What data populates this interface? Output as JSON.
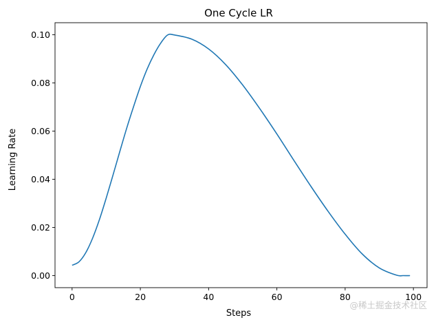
{
  "chart_data": {
    "type": "line",
    "title": "One Cycle LR",
    "xlabel": "Steps",
    "ylabel": "Learning Rate",
    "xlim": [
      -5,
      104
    ],
    "ylim": [
      -0.005,
      0.105
    ],
    "xticks": [
      0,
      20,
      40,
      60,
      80,
      100
    ],
    "yticks": [
      0.0,
      0.02,
      0.04,
      0.06,
      0.08,
      0.1
    ],
    "xtick_labels": [
      "0",
      "20",
      "40",
      "60",
      "80",
      "100"
    ],
    "ytick_labels": [
      "0.00",
      "0.02",
      "0.04",
      "0.06",
      "0.08",
      "0.10"
    ],
    "grid": false,
    "legend": "none",
    "series": [
      {
        "color": "#1f77b4",
        "x": [
          0,
          2,
          4,
          6,
          8,
          10,
          12,
          14,
          16,
          18,
          20,
          22,
          24,
          26,
          28,
          30,
          35,
          40,
          45,
          50,
          55,
          60,
          65,
          70,
          75,
          80,
          85,
          90,
          95,
          97,
          99
        ],
        "y": [
          0.0043,
          0.0057,
          0.0095,
          0.0155,
          0.0232,
          0.0322,
          0.0418,
          0.0516,
          0.0612,
          0.0701,
          0.0785,
          0.0858,
          0.0918,
          0.0966,
          0.0999,
          0.0999,
          0.0982,
          0.0941,
          0.0876,
          0.0791,
          0.0693,
          0.0588,
          0.0478,
          0.037,
          0.0267,
          0.0172,
          0.009,
          0.0032,
          0.0002,
          0.0,
          0.0
        ]
      }
    ]
  },
  "watermark": "@稀土掘金技术社区"
}
